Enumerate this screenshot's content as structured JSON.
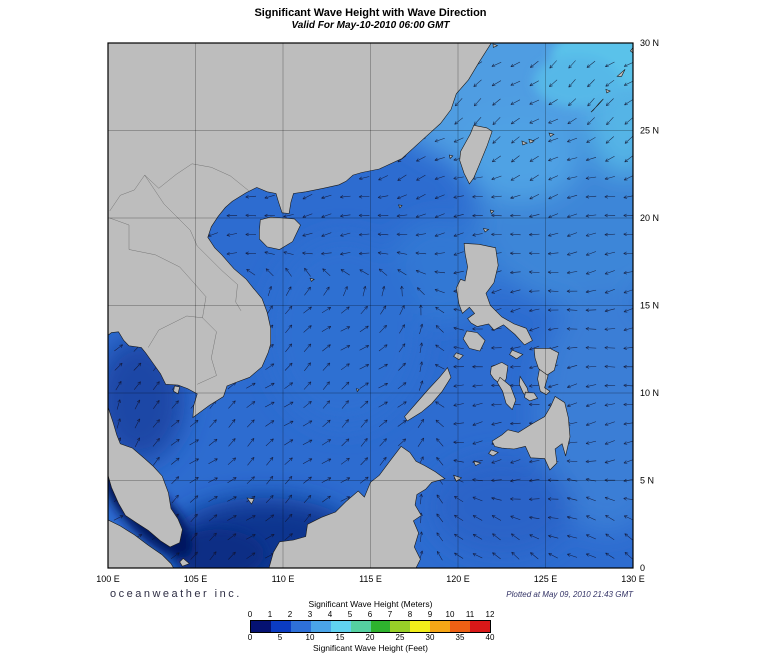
{
  "title": "Significant Wave Height with Wave Direction",
  "subtitle": "Valid For May-10-2010 06:00 GMT",
  "branding": {
    "credit": "oceanweather inc.",
    "plotted": "Plotted at May 09, 2010 21:43 GMT"
  },
  "axes": {
    "lon_labels": [
      "100 E",
      "105 E",
      "110 E",
      "115 E",
      "120 E",
      "125 E",
      "130 E"
    ],
    "lon_values": [
      100,
      105,
      110,
      115,
      120,
      125,
      130
    ],
    "lat_labels": [
      "0",
      "5 N",
      "10 N",
      "15 N",
      "20 N",
      "25 N",
      "30 N"
    ],
    "lat_values": [
      0,
      5,
      10,
      15,
      20,
      25,
      30
    ]
  },
  "colorbar": {
    "meters_title": "Significant Wave Height (Meters)",
    "feet_title": "Significant Wave Height (Feet)",
    "meters_ticks": [
      0,
      1,
      2,
      3,
      4,
      5,
      6,
      7,
      8,
      9,
      10,
      11,
      12
    ],
    "feet_ticks": [
      0,
      5,
      10,
      15,
      20,
      25,
      30,
      35,
      40
    ],
    "band_colors": [
      "#051272",
      "#0b3cc2",
      "#2e70d8",
      "#4aa4e8",
      "#60d2f0",
      "#55d0a0",
      "#2eb22e",
      "#98d028",
      "#f2ee1a",
      "#f6a616",
      "#ee6014",
      "#d81818"
    ]
  },
  "map_style": {
    "ocean_base": "#2d6cd0",
    "land": "#bdbdbd",
    "coast": "#1a1a1a",
    "grid": "#000000",
    "arrow": "#10102a"
  }
}
